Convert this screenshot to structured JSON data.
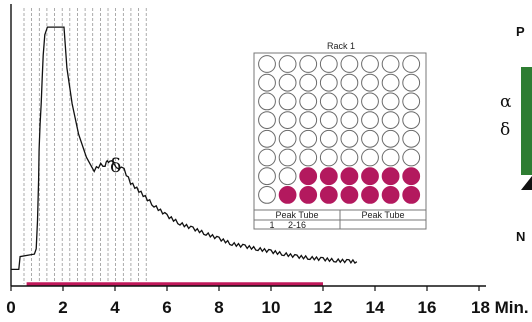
{
  "chart_data": {
    "type": "line",
    "x_unit_label": "Min.",
    "xlim": [
      0,
      18
    ],
    "x_ticks": [
      0,
      2,
      4,
      6,
      8,
      10,
      12,
      14,
      16,
      18
    ],
    "x_tick_labels": [
      "0",
      "2",
      "4",
      "6",
      "8",
      "10",
      "12",
      "14",
      "16",
      "18 Min."
    ],
    "series": [
      {
        "x": [
          0.0,
          0.3,
          0.35,
          0.9,
          0.97,
          1.02,
          1.06,
          1.08,
          1.12,
          1.16,
          1.2,
          1.24,
          1.3,
          1.4,
          2.04,
          2.15,
          2.35,
          2.6,
          2.9,
          3.2,
          3.45,
          3.62,
          3.7,
          3.8,
          3.95,
          4.15,
          4.35,
          4.6,
          5.0,
          5.5,
          6.0,
          6.5,
          7.0,
          7.5,
          8.0,
          8.5,
          9.0,
          9.5,
          10.0,
          10.5,
          11.0,
          11.5,
          12.0,
          12.5,
          13.0,
          13.3
        ],
        "y": [
          0.03,
          0.03,
          0.08,
          0.09,
          0.11,
          0.22,
          0.38,
          0.5,
          0.6,
          0.68,
          0.78,
          0.87,
          0.95,
          0.98,
          0.98,
          0.82,
          0.68,
          0.56,
          0.47,
          0.42,
          0.44,
          0.44,
          0.45,
          0.46,
          0.44,
          0.43,
          0.42,
          0.37,
          0.33,
          0.28,
          0.24,
          0.21,
          0.19,
          0.17,
          0.15,
          0.13,
          0.12,
          0.11,
          0.1,
          0.09,
          0.08,
          0.075,
          0.07,
          0.065,
          0.062,
          0.06
        ]
      }
    ],
    "fraction_bar": {
      "x_start": 0.6,
      "x_end": 12.0,
      "color": "#c0185a"
    },
    "fraction_lines_x_range": [
      0.5,
      5.2
    ],
    "fraction_lines_count": 17,
    "peak_label": "δ"
  },
  "rack": {
    "title": "Rack 1",
    "rows": 8,
    "cols": 8,
    "filled_row_start_col": [
      null,
      null,
      null,
      null,
      null,
      null,
      2,
      1
    ],
    "filled_color": "#b3195e",
    "table_headers": [
      "Peak Tube",
      "Peak Tube"
    ],
    "table_values": [
      "1",
      "2-16"
    ]
  },
  "side_panel": {
    "top_label": "P",
    "alpha_label": "α",
    "delta_label": "δ",
    "bottom_label": "N",
    "gel_color": "#2e7d32"
  }
}
